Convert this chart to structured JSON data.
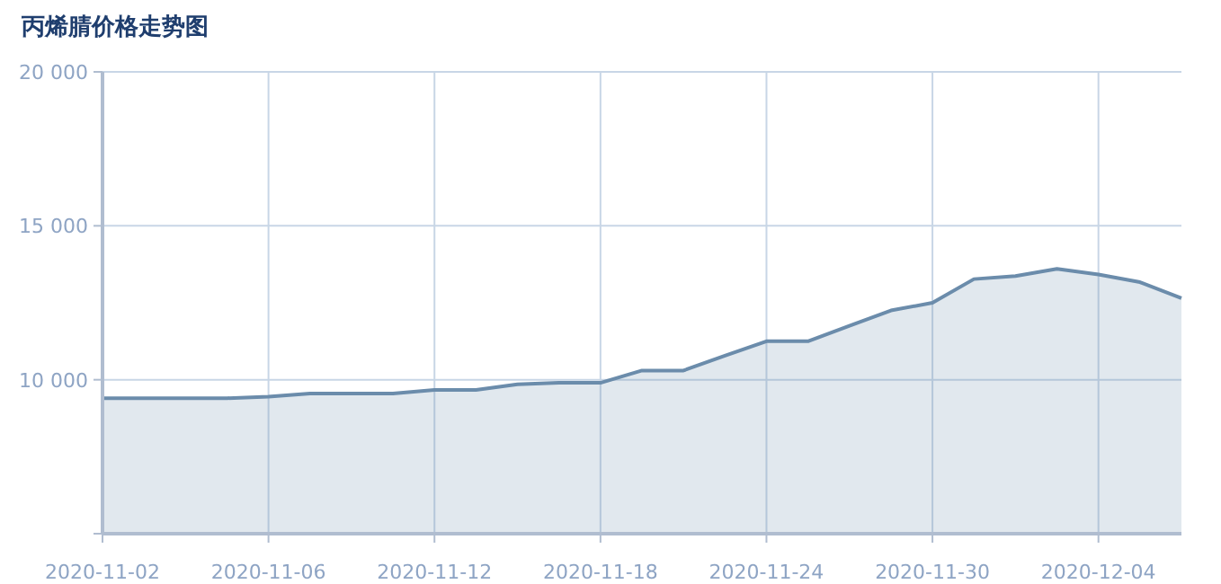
{
  "chart_data": {
    "type": "area",
    "title": "丙烯腈价格走势图",
    "categories": [
      "2020-11-02",
      null,
      null,
      null,
      "2020-11-06",
      null,
      null,
      null,
      "2020-11-12",
      null,
      null,
      null,
      "2020-11-18",
      null,
      null,
      null,
      "2020-11-24",
      null,
      null,
      null,
      "2020-11-30",
      null,
      null,
      null,
      "2020-12-04",
      null,
      null
    ],
    "series": [
      {
        "color": "#6b8cab",
        "values": [
          9400,
          9400,
          9400,
          9400,
          9450,
          9550,
          9550,
          9550,
          9670,
          9670,
          9850,
          9900,
          9900,
          10300,
          10300,
          10780,
          11250,
          11250,
          11750,
          12250,
          12500,
          13270,
          13370,
          13600,
          13420,
          13170,
          12650
        ]
      }
    ],
    "ylim": [
      5000,
      20000
    ],
    "yticks": [
      {
        "value": 5000,
        "label": null
      },
      {
        "value": 10000,
        "label": "10 000"
      },
      {
        "value": 15000,
        "label": "15 000"
      },
      {
        "value": 20000,
        "label": "20 000"
      }
    ],
    "grid": true,
    "marker": "none"
  }
}
